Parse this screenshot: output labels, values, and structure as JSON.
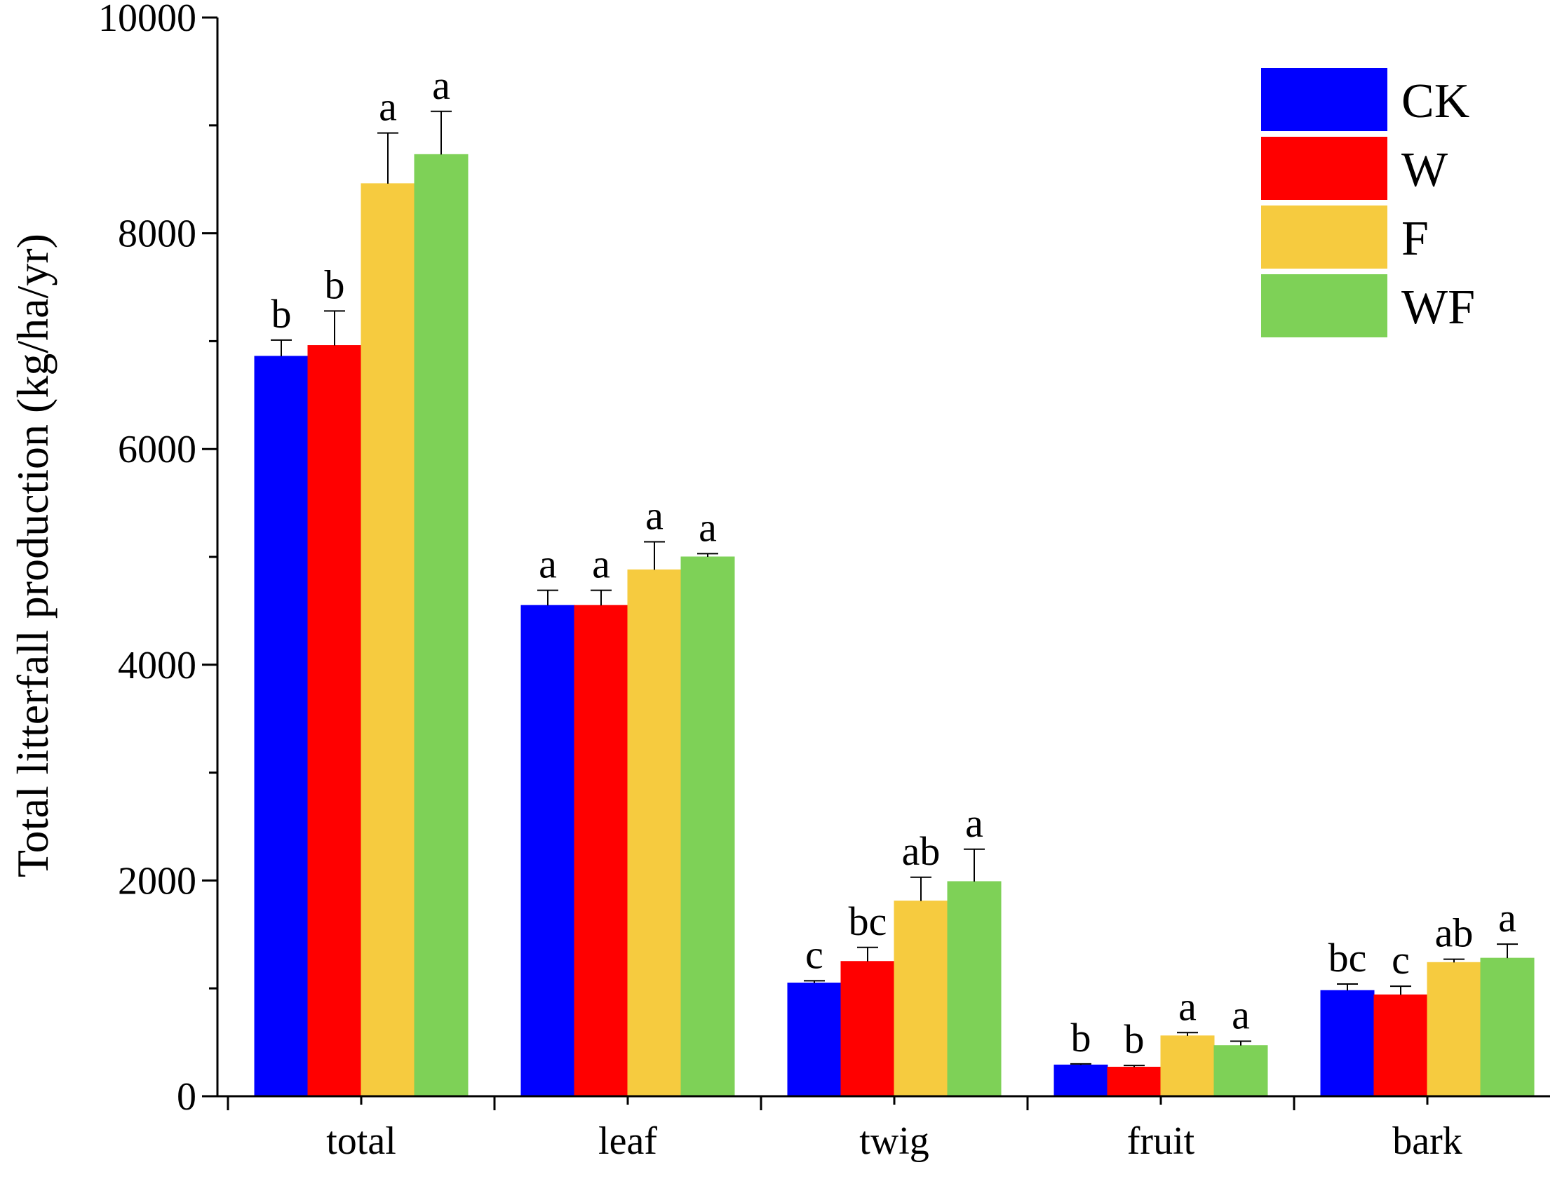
{
  "chart_data": {
    "type": "bar",
    "title": "",
    "xlabel": "",
    "ylabel": "Total litterfall production (kg/ha/yr)",
    "ylim": [
      0,
      10000
    ],
    "yticks": [
      0,
      2000,
      4000,
      6000,
      8000,
      10000
    ],
    "grid": false,
    "legend_position": "top-right",
    "categories": [
      "total",
      "leaf",
      "twig",
      "fruit",
      "bark"
    ],
    "series": [
      {
        "name": "CK",
        "color": "#0000FF",
        "values": [
          6860,
          4550,
          1050,
          290,
          980
        ],
        "errors": [
          150,
          140,
          20,
          10,
          60
        ],
        "labels": [
          "b",
          "a",
          "c",
          "b",
          "bc"
        ]
      },
      {
        "name": "W",
        "color": "#FF0000",
        "values": [
          6960,
          4550,
          1250,
          270,
          940
        ],
        "errors": [
          320,
          140,
          130,
          15,
          80
        ],
        "labels": [
          "b",
          "a",
          "bc",
          "b",
          "c"
        ]
      },
      {
        "name": "F",
        "color": "#F6CB3F",
        "values": [
          8460,
          4880,
          1810,
          560,
          1240
        ],
        "errors": [
          470,
          260,
          220,
          30,
          30
        ],
        "labels": [
          "a",
          "a",
          "ab",
          "a",
          "ab"
        ]
      },
      {
        "name": "WF",
        "color": "#7ED157",
        "values": [
          8730,
          5000,
          1990,
          470,
          1280
        ],
        "errors": [
          400,
          30,
          300,
          40,
          130
        ],
        "labels": [
          "a",
          "a",
          "a",
          "a",
          "a"
        ]
      }
    ]
  }
}
